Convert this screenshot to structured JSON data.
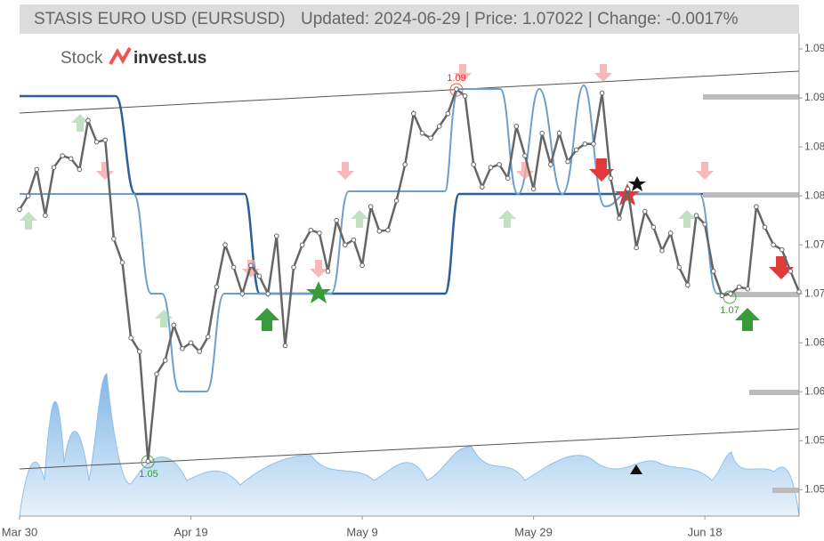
{
  "chart_data": {
    "type": "line",
    "title": "STASIS EURO USD (EURSUSD)",
    "subtitle": "Updated: 2024-06-29 | Price: 1.07022 | Change: -0.0017%",
    "logo": [
      "Stock",
      "invest.us"
    ],
    "annotations": [
      "1.09",
      "1.05",
      "1.07"
    ],
    "categories": [
      "Mar 30",
      null,
      null,
      null,
      null,
      null,
      null,
      null,
      null,
      null,
      null,
      null,
      null,
      null,
      null,
      null,
      null,
      null,
      null,
      null,
      "Apr 19",
      null,
      null,
      null,
      null,
      null,
      null,
      null,
      null,
      null,
      null,
      null,
      null,
      null,
      null,
      null,
      null,
      null,
      null,
      null,
      "May 9",
      null,
      null,
      null,
      null,
      null,
      null,
      null,
      null,
      null,
      null,
      null,
      null,
      null,
      null,
      null,
      null,
      null,
      null,
      null,
      "May 29",
      null,
      null,
      null,
      null,
      null,
      null,
      null,
      null,
      null,
      null,
      null,
      null,
      null,
      null,
      null,
      null,
      null,
      null,
      null,
      "Jun 18",
      null,
      null,
      null,
      null,
      null,
      null,
      null,
      null,
      null,
      null,
      null
    ],
    "series": [
      {
        "color": "#666666",
        "values": [
          1.0786,
          1.08,
          1.0827,
          1.078,
          1.0829,
          1.0841,
          1.0838,
          1.0827,
          1.0877,
          1.0855,
          1.0857,
          1.0756,
          1.0732,
          1.0655,
          1.0641,
          1.0529,
          1.0618,
          1.0632,
          1.0668,
          1.0644,
          1.065,
          1.0641,
          1.0656,
          1.0707,
          1.075,
          1.0727,
          1.07,
          1.0729,
          1.0718,
          1.07,
          1.0759,
          1.0647,
          1.0727,
          1.075,
          1.0765,
          1.0762,
          1.0723,
          1.0775,
          1.075,
          1.0755,
          1.0729,
          1.0789,
          1.0764,
          1.0765,
          1.0795,
          1.0832,
          1.0884,
          1.0864,
          1.0859,
          1.0871,
          1.0884,
          1.0909,
          1.0902,
          1.0832,
          1.0809,
          1.0829,
          1.0832,
          1.0818,
          1.0871,
          1.0841,
          1.0807,
          1.0864,
          1.0832,
          1.0864,
          1.0835,
          1.0847,
          1.0853,
          1.0853,
          1.0905,
          1.0818,
          1.0777,
          1.0807,
          1.0747,
          1.0784,
          1.0768,
          1.0744,
          1.0762,
          1.0727,
          1.0709,
          1.078,
          1.0771,
          1.0723,
          1.0698,
          1.07,
          1.0707,
          1.0705,
          1.0789,
          1.0768,
          1.075,
          1.0745,
          1.0723,
          1.0702
        ]
      }
    ],
    "ylim": [
      1.0473,
      1.1
    ],
    "yticks": [
      {
        "value": 1.095,
        "label": "1.09"
      },
      {
        "value": 1.09,
        "label": "1.09"
      },
      {
        "value": 1.085,
        "label": "1.08"
      },
      {
        "value": 1.08,
        "label": "1.08"
      },
      {
        "value": 1.075,
        "label": "1.07"
      },
      {
        "value": 1.07,
        "label": "1.07"
      },
      {
        "value": 1.065,
        "label": "1.06"
      },
      {
        "value": 1.06,
        "label": "1.06"
      },
      {
        "value": 1.055,
        "label": "1.05"
      },
      {
        "value": 1.05,
        "label": "1.05"
      }
    ]
  }
}
